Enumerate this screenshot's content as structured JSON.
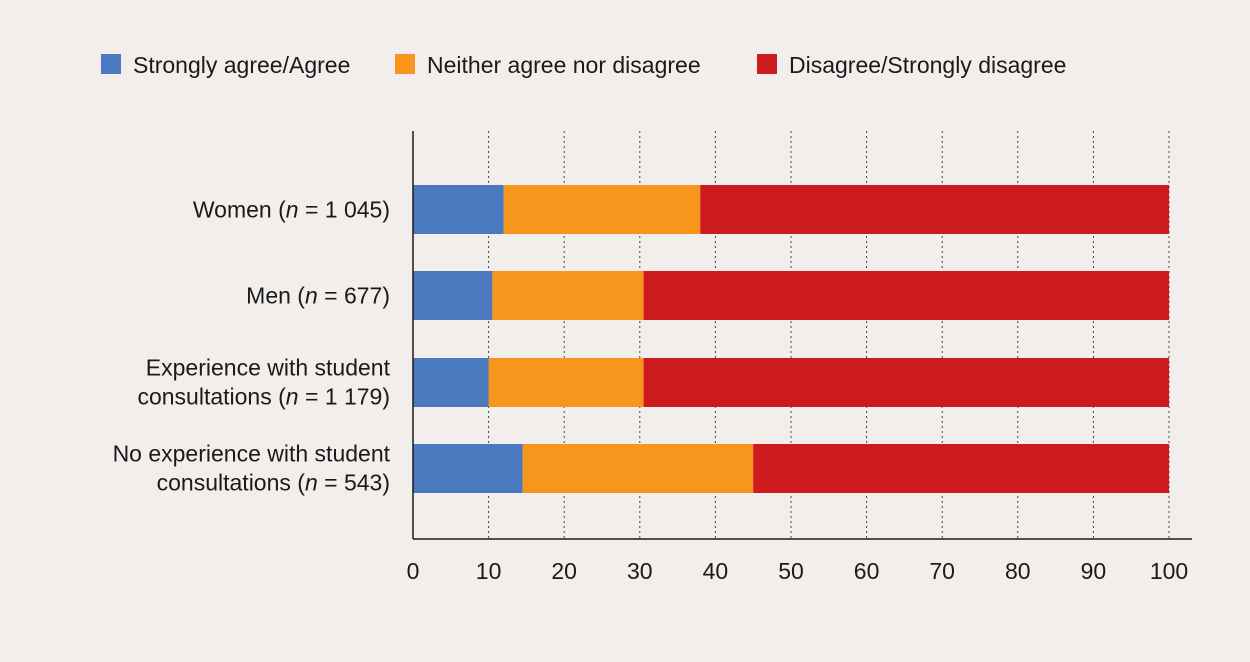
{
  "chart_data": {
    "type": "bar",
    "orientation": "horizontal",
    "stacked": true,
    "title": "",
    "xlabel": "",
    "ylabel": "",
    "xlim": [
      0,
      100
    ],
    "xticks": [
      0,
      10,
      20,
      30,
      40,
      50,
      60,
      70,
      80,
      90,
      100
    ],
    "grid": "vertical dotted",
    "legend_position": "top",
    "categories": [
      {
        "text": "Women (",
        "italic": "n",
        "rest": " = 1 045)"
      },
      {
        "text": "Men (",
        "italic": "n",
        "rest": " = 677)"
      },
      {
        "line1": "Experience with student",
        "text": "consultations (",
        "italic": "n",
        "rest": " = 1 179)"
      },
      {
        "line1": "No experience with student",
        "text": "consultations (",
        "italic": "n",
        "rest": " = 543)"
      }
    ],
    "series": [
      {
        "name": "Strongly agree/Agree",
        "color": "#4a79bf",
        "values": [
          12,
          10.5,
          10,
          14.5
        ]
      },
      {
        "name": "Neither agree nor disagree",
        "color": "#f7951d",
        "values": [
          26,
          20,
          20.5,
          30.5
        ]
      },
      {
        "name": "Disagree/Strongly disagree",
        "color": "#cc1a1f",
        "values": [
          62,
          69.5,
          69.5,
          55
        ]
      }
    ]
  }
}
